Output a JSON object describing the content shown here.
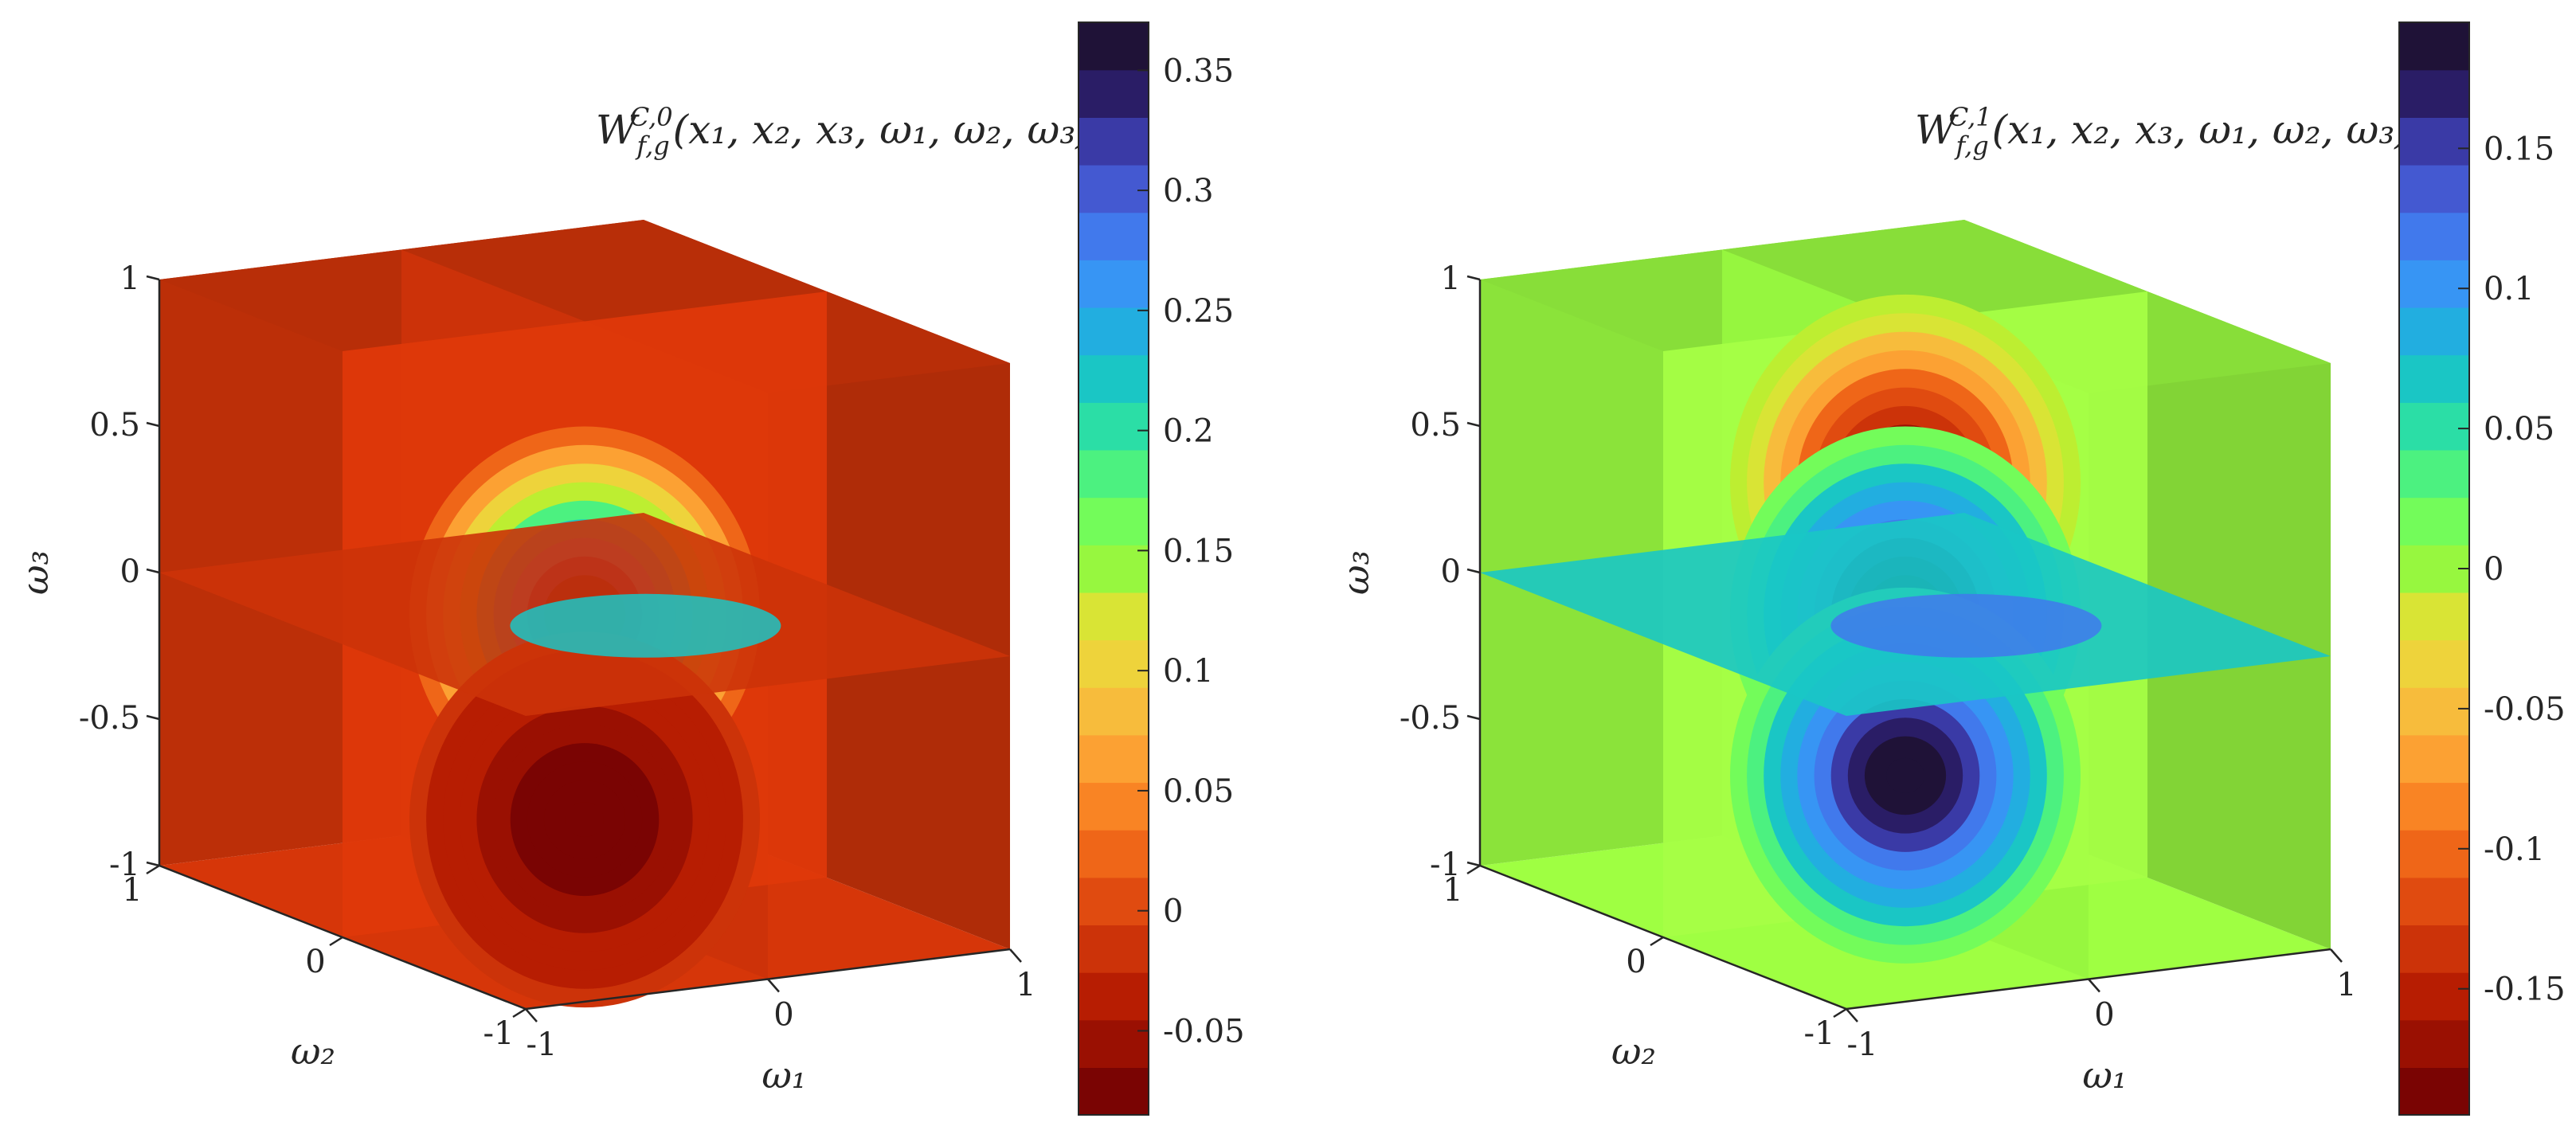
{
  "chart_data": [
    {
      "type": "heatmap",
      "subtype": "3d-slice-contour",
      "title": "W_{f,g}^{C,0}(x_1,x_2,x_3,ω_1,ω_2,ω_3)",
      "title_main": "W",
      "title_sub": "f,g",
      "title_sup": "C,0",
      "title_args": "(x₁, x₂, x₃, ω₁, ω₂, ω₃)",
      "xlabel": "ω₁",
      "ylabel": "ω₂",
      "zlabel": "ω₃",
      "xlim": [
        -1,
        1
      ],
      "ylim": [
        -1,
        1
      ],
      "zlim": [
        -1,
        1
      ],
      "x_ticks": [
        "-1",
        "0",
        "1"
      ],
      "y_ticks": [
        "-1",
        "0",
        "1"
      ],
      "z_ticks": [
        "-1",
        "-0.5",
        "0",
        "0.5",
        "1"
      ],
      "colorbar": {
        "min": -0.085,
        "max": 0.37,
        "ticks": [
          -0.05,
          0,
          0.05,
          0.1,
          0.15,
          0.2,
          0.25,
          0.3,
          0.35
        ],
        "tick_labels": [
          "-0.05",
          "0",
          "0.05",
          "0.1",
          "0.15",
          "0.2",
          "0.25",
          "0.3",
          "0.35"
        ],
        "levels": 23,
        "colormap": "turbo-reversed"
      },
      "slices": [
        "ω₁ = 0",
        "ω₂ = 0",
        "ω₃ = 0"
      ],
      "background_value": -0.02,
      "features": [
        {
          "kind": "peak",
          "value": 0.37,
          "location": [
            0.0,
            0.0,
            0.0
          ]
        },
        {
          "kind": "trough",
          "value": -0.085,
          "location": [
            0.0,
            0.0,
            -0.7
          ]
        }
      ]
    },
    {
      "type": "heatmap",
      "subtype": "3d-slice-contour",
      "title": "W_{f,g}^{C,1}(x_1,x_2,x_3,ω_1,ω_2,ω_3)",
      "title_main": "W",
      "title_sub": "f,g",
      "title_sup": "C,1",
      "title_args": "(x₁, x₂, x₃, ω₁, ω₂, ω₃)",
      "xlabel": "ω₁",
      "ylabel": "ω₂",
      "zlabel": "ω₃",
      "xlim": [
        -1,
        1
      ],
      "ylim": [
        -1,
        1
      ],
      "zlim": [
        -1,
        1
      ],
      "x_ticks": [
        "-1",
        "0",
        "1"
      ],
      "y_ticks": [
        "-1",
        "0",
        "1"
      ],
      "z_ticks": [
        "-1",
        "-0.5",
        "0",
        "0.5",
        "1"
      ],
      "colorbar": {
        "min": -0.195,
        "max": 0.195,
        "ticks": [
          -0.15,
          -0.1,
          -0.05,
          0,
          0.05,
          0.1,
          0.15
        ],
        "tick_labels": [
          "-0.15",
          "-0.1",
          "-0.05",
          "0",
          "0.05",
          "0.1",
          "0.15"
        ],
        "levels": 23,
        "colormap": "turbo-reversed"
      },
      "slices": [
        "ω₁ = 0",
        "ω₂ = 0",
        "ω₃ = 0"
      ],
      "background_value": 0.01,
      "features": [
        {
          "kind": "trough",
          "value": -0.195,
          "location": [
            0.0,
            0.0,
            0.45
          ]
        },
        {
          "kind": "peak",
          "value": 0.195,
          "location": [
            0.0,
            0.0,
            0.0
          ]
        },
        {
          "kind": "peak",
          "value": 0.195,
          "location": [
            0.0,
            0.0,
            -0.55
          ]
        }
      ]
    }
  ]
}
